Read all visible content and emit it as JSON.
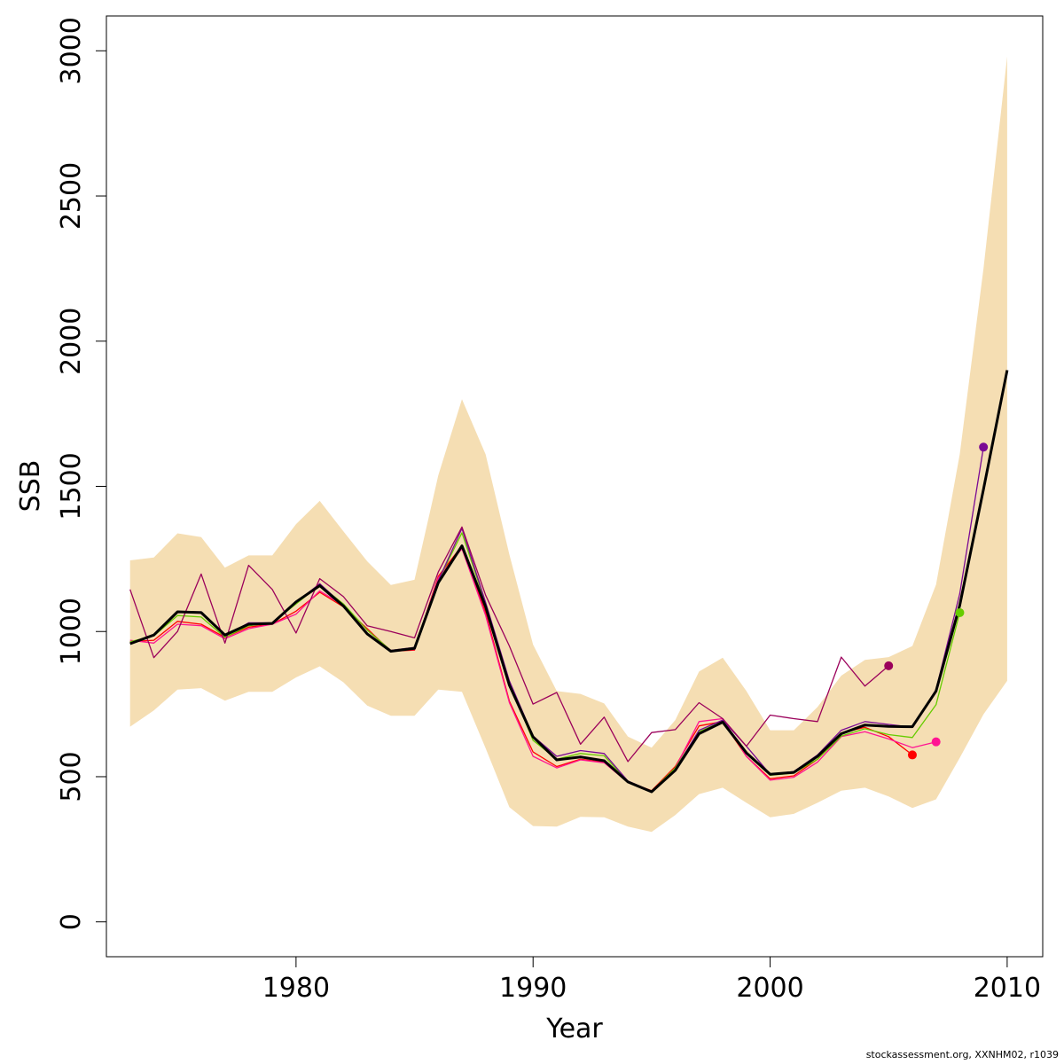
{
  "chart_data": {
    "type": "line",
    "xlabel": "Year",
    "ylabel": "SSB",
    "xlim": [
      1972,
      2011.5
    ],
    "ylim": [
      -120,
      3120
    ],
    "x_ticks": [
      1980,
      1990,
      2000,
      2010
    ],
    "y_ticks": [
      0,
      500,
      1000,
      1500,
      2000,
      2500,
      3000
    ],
    "grid": false,
    "band": {
      "color": "#F5DEB3",
      "x": [
        1973,
        1974,
        1975,
        1976,
        1977,
        1978,
        1979,
        1980,
        1981,
        1982,
        1983,
        1984,
        1985,
        1986,
        1987,
        1988,
        1989,
        1990,
        1991,
        1992,
        1993,
        1994,
        1995,
        1996,
        1997,
        1998,
        1999,
        2000,
        2001,
        2002,
        2003,
        2004,
        2005,
        2006,
        2007,
        2008,
        2009,
        2010
      ],
      "upper": [
        1245,
        1255,
        1338,
        1325,
        1220,
        1262,
        1262,
        1370,
        1450,
        1345,
        1242,
        1160,
        1178,
        1538,
        1800,
        1610,
        1265,
        955,
        795,
        785,
        752,
        638,
        600,
        695,
        862,
        910,
        795,
        660,
        660,
        740,
        848,
        902,
        912,
        950,
        1162,
        1610,
        2250,
        2980
      ],
      "lower": [
        672,
        728,
        800,
        805,
        762,
        792,
        792,
        842,
        880,
        825,
        745,
        710,
        710,
        800,
        792,
        598,
        395,
        330,
        328,
        362,
        360,
        328,
        310,
        368,
        440,
        462,
        410,
        360,
        372,
        410,
        452,
        462,
        432,
        392,
        422,
        565,
        715,
        830
      ]
    },
    "series": [
      {
        "color": "#FF0000",
        "width": 1.3,
        "x": [
          1973,
          1974,
          1975,
          1976,
          1977,
          1978,
          1979,
          1980,
          1981,
          1982,
          1983,
          1984,
          1985,
          1986,
          1987,
          1988,
          1989,
          1990,
          1991,
          1992,
          1993,
          1994,
          1995,
          1996,
          1997,
          1998,
          1999,
          2000,
          2001,
          2002,
          2003,
          2004,
          2005,
          2006
        ],
        "y": [
          965,
          970,
          1035,
          1025,
          980,
          1015,
          1025,
          1070,
          1135,
          1085,
          1010,
          932,
          936,
          1190,
          1295,
          1065,
          760,
          585,
          535,
          560,
          550,
          482,
          452,
          535,
          675,
          690,
          570,
          493,
          503,
          560,
          650,
          670,
          638,
          575
        ],
        "end_point": true
      },
      {
        "color": "#FF1493",
        "width": 1.3,
        "x": [
          1973,
          1974,
          1975,
          1976,
          1977,
          1978,
          1979,
          1980,
          1981,
          1982,
          1983,
          1984,
          1985,
          1986,
          1987,
          1988,
          1989,
          1990,
          1991,
          1992,
          1993,
          1994,
          1995,
          1996,
          1997,
          1998,
          1999,
          2000,
          2001,
          2002,
          2003,
          2004,
          2005,
          2006,
          2007
        ],
        "y": [
          970,
          960,
          1025,
          1020,
          975,
          1010,
          1025,
          1060,
          1140,
          1090,
          1005,
          935,
          938,
          1185,
          1285,
          1055,
          755,
          570,
          530,
          558,
          548,
          480,
          450,
          530,
          690,
          700,
          570,
          488,
          498,
          550,
          638,
          655,
          630,
          600,
          620
        ],
        "end_point": true
      },
      {
        "color": "#66CC00",
        "width": 1.3,
        "x": [
          1973,
          1974,
          1975,
          1976,
          1977,
          1978,
          1979,
          1980,
          1981,
          1982,
          1983,
          1984,
          1985,
          1986,
          1987,
          1988,
          1989,
          1990,
          1991,
          1992,
          1993,
          1994,
          1995,
          1996,
          1997,
          1998,
          1999,
          2000,
          2001,
          2002,
          2003,
          2004,
          2005,
          2006,
          2007,
          2008
        ],
        "y": [
          965,
          985,
          1055,
          1050,
          980,
          1020,
          1030,
          1095,
          1160,
          1095,
          1005,
          935,
          945,
          1175,
          1340,
          1095,
          820,
          625,
          560,
          580,
          572,
          482,
          450,
          530,
          655,
          690,
          580,
          505,
          512,
          560,
          640,
          665,
          645,
          635,
          748,
          1065
        ],
        "end_point": true
      },
      {
        "color": "#7A0A94",
        "width": 1.3,
        "x": [
          1973,
          1974,
          1975,
          1976,
          1977,
          1978,
          1979,
          1980,
          1981,
          1982,
          1983,
          1984,
          1985,
          1986,
          1987,
          1988,
          1989,
          1990,
          1991,
          1992,
          1993,
          1994,
          1995,
          1996,
          1997,
          1998,
          1999,
          2000,
          2001,
          2002,
          2003,
          2004,
          2005,
          2006,
          2007,
          2008,
          2009
        ],
        "y": [
          960,
          990,
          1068,
          1068,
          985,
          1030,
          1030,
          1100,
          1165,
          1090,
          995,
          935,
          945,
          1175,
          1355,
          1100,
          830,
          640,
          570,
          590,
          580,
          485,
          450,
          525,
          660,
          695,
          605,
          508,
          518,
          575,
          660,
          690,
          680,
          670,
          800,
          1130,
          1635
        ],
        "end_point": true
      },
      {
        "color": "#9B005B",
        "width": 1.3,
        "x": [
          1973,
          1974,
          1975,
          1976,
          1977,
          1978,
          1979,
          1980,
          1981,
          1982,
          1983,
          1984,
          1985,
          1986,
          1987,
          1988,
          1989,
          1990,
          1991,
          1992,
          1993,
          1994,
          1995,
          1996,
          1997,
          1998,
          1999,
          2000,
          2001,
          2002,
          2003,
          2004,
          2005
        ],
        "y": [
          1145,
          910,
          1000,
          1198,
          960,
          1228,
          1145,
          995,
          1182,
          1120,
          1020,
          1000,
          978,
          1205,
          1360,
          1125,
          950,
          750,
          790,
          612,
          705,
          552,
          652,
          662,
          755,
          700,
          605,
          712,
          700,
          690,
          912,
          812,
          882
        ],
        "end_point": true
      },
      {
        "color": "#000000",
        "width": 3,
        "x": [
          1973,
          1974,
          1975,
          1976,
          1977,
          1978,
          1979,
          1980,
          1981,
          1982,
          1983,
          1984,
          1985,
          1986,
          1987,
          1988,
          1989,
          1990,
          1991,
          1992,
          1993,
          1994,
          1995,
          1996,
          1997,
          1998,
          1999,
          2000,
          2001,
          2002,
          2003,
          2004,
          2005,
          2006,
          2007,
          2008,
          2009,
          2010
        ],
        "y": [
          958,
          988,
          1068,
          1065,
          988,
          1025,
          1028,
          1102,
          1158,
          1088,
          992,
          932,
          942,
          1168,
          1295,
          1085,
          815,
          637,
          558,
          568,
          555,
          482,
          448,
          522,
          648,
          688,
          582,
          508,
          515,
          570,
          648,
          678,
          673,
          672,
          795,
          1090,
          1490,
          1900
        ],
        "end_point": false
      }
    ]
  },
  "footer": "stockassessment.org, XXNHM02, r1039"
}
